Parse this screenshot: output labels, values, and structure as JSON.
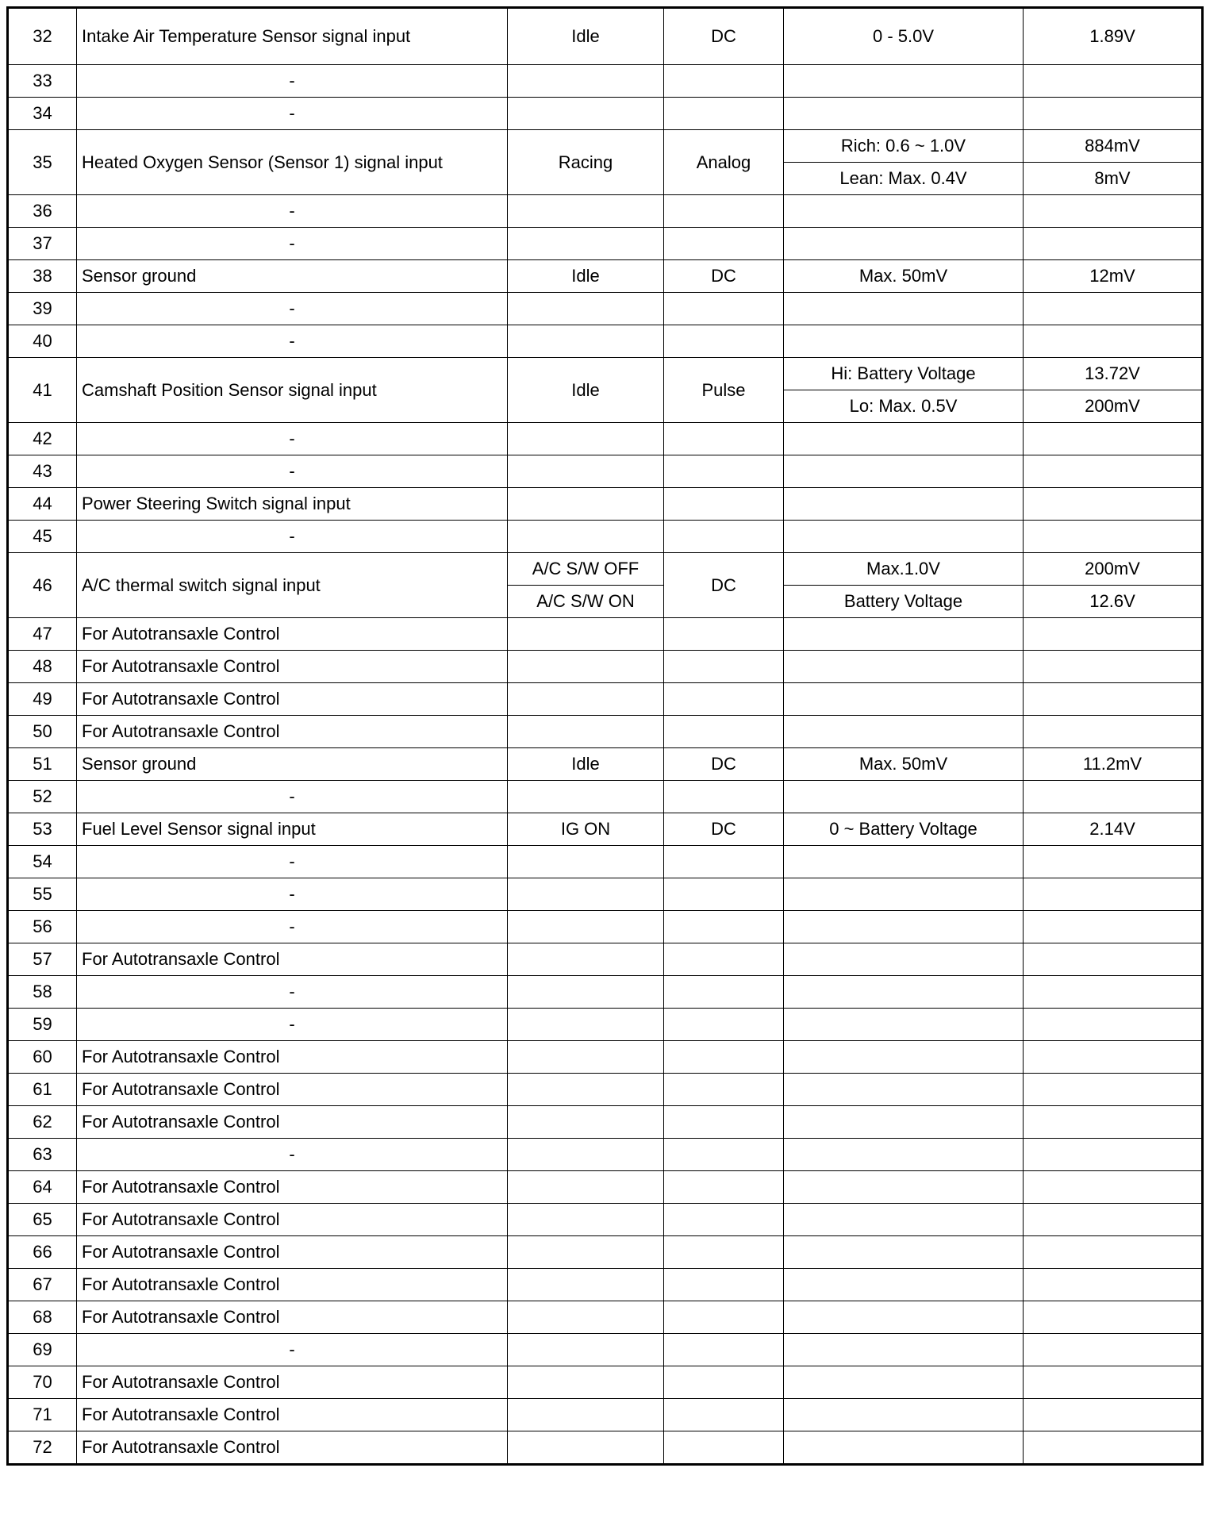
{
  "rows": [
    {
      "pin": "32",
      "desc": "Intake Air Temperature Sensor signal input",
      "state": "Idle",
      "type": "DC",
      "levels": [
        {
          "spec": "0 - 5.0V",
          "result": "1.89V"
        }
      ]
    },
    {
      "pin": "33",
      "desc": "-"
    },
    {
      "pin": "34",
      "desc": "-"
    },
    {
      "pin": "35",
      "desc": "Heated Oxygen Sensor (Sensor 1) signal input",
      "state": "Racing",
      "type": "Analog",
      "levels": [
        {
          "spec": "Rich: 0.6 ~ 1.0V",
          "result": "884mV"
        },
        {
          "spec": "Lean: Max. 0.4V",
          "result": "8mV"
        }
      ]
    },
    {
      "pin": "36",
      "desc": "-"
    },
    {
      "pin": "37",
      "desc": "-"
    },
    {
      "pin": "38",
      "desc": "Sensor ground",
      "state": "Idle",
      "type": "DC",
      "levels": [
        {
          "spec": "Max. 50mV",
          "result": "12mV"
        }
      ]
    },
    {
      "pin": "39",
      "desc": "-"
    },
    {
      "pin": "40",
      "desc": "-"
    },
    {
      "pin": "41",
      "desc": "Camshaft Position Sensor signal input",
      "state": "Idle",
      "type": "Pulse",
      "levels": [
        {
          "spec": "Hi: Battery Voltage",
          "result": "13.72V"
        },
        {
          "spec": "Lo: Max. 0.5V",
          "result": "200mV"
        }
      ]
    },
    {
      "pin": "42",
      "desc": "-"
    },
    {
      "pin": "43",
      "desc": "-"
    },
    {
      "pin": "44",
      "desc": "Power Steering Switch signal input"
    },
    {
      "pin": "45",
      "desc": "-"
    },
    {
      "pin": "46",
      "desc": "A/C thermal switch signal input",
      "type": "DC",
      "levels": [
        {
          "state": "A/C S/W OFF",
          "spec": "Max.1.0V",
          "result": "200mV"
        },
        {
          "state": "A/C S/W ON",
          "spec": "Battery Voltage",
          "result": "12.6V"
        }
      ]
    },
    {
      "pin": "47",
      "desc": "For Autotransaxle Control"
    },
    {
      "pin": "48",
      "desc": "For Autotransaxle Control"
    },
    {
      "pin": "49",
      "desc": "For Autotransaxle Control"
    },
    {
      "pin": "50",
      "desc": "For Autotransaxle Control"
    },
    {
      "pin": "51",
      "desc": "Sensor ground",
      "state": "Idle",
      "type": "DC",
      "levels": [
        {
          "spec": "Max. 50mV",
          "result": "11.2mV"
        }
      ]
    },
    {
      "pin": "52",
      "desc": "-"
    },
    {
      "pin": "53",
      "desc": "Fuel Level Sensor signal input",
      "state": "IG ON",
      "type": "DC",
      "levels": [
        {
          "spec": "0 ~ Battery Voltage",
          "result": "2.14V"
        }
      ]
    },
    {
      "pin": "54",
      "desc": "-"
    },
    {
      "pin": "55",
      "desc": "-"
    },
    {
      "pin": "56",
      "desc": "-"
    },
    {
      "pin": "57",
      "desc": "For Autotransaxle Control"
    },
    {
      "pin": "58",
      "desc": "-"
    },
    {
      "pin": "59",
      "desc": "-"
    },
    {
      "pin": "60",
      "desc": "For Autotransaxle Control"
    },
    {
      "pin": "61",
      "desc": "For Autotransaxle Control"
    },
    {
      "pin": "62",
      "desc": "For Autotransaxle Control"
    },
    {
      "pin": "63",
      "desc": "-"
    },
    {
      "pin": "64",
      "desc": "For Autotransaxle Control"
    },
    {
      "pin": "65",
      "desc": "For Autotransaxle Control"
    },
    {
      "pin": "66",
      "desc": "For Autotransaxle Control"
    },
    {
      "pin": "67",
      "desc": "For Autotransaxle Control"
    },
    {
      "pin": "68",
      "desc": "For Autotransaxle Control"
    },
    {
      "pin": "69",
      "desc": "-"
    },
    {
      "pin": "70",
      "desc": "For Autotransaxle Control"
    },
    {
      "pin": "71",
      "desc": "For Autotransaxle Control"
    },
    {
      "pin": "72",
      "desc": "For Autotransaxle Control"
    }
  ]
}
